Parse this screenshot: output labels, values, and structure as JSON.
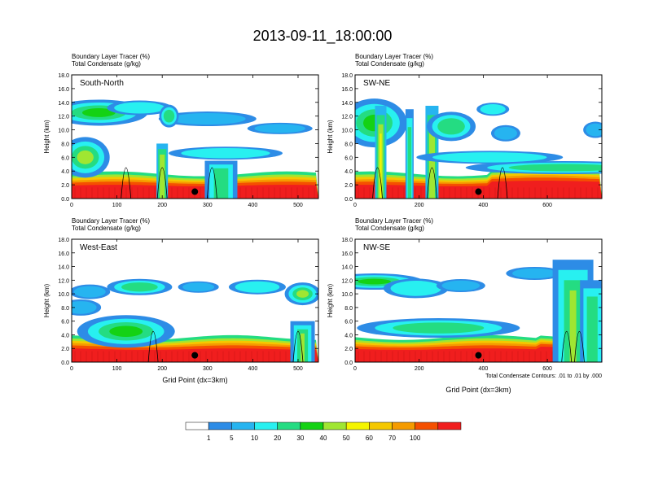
{
  "title": "2013-09-11_18:00:00",
  "panel_header": {
    "line1_name": "Boundary Layer Tracer",
    "line1_unit": "(%)",
    "line2_name": "Total Condensate",
    "line2_unit": "(g/kg)"
  },
  "ylabel": "Height (km)",
  "xlabel": "Grid Point (dx=3km)",
  "contour_note": "Total Condensate Contours: .01 to .01 by .000",
  "colorbar": {
    "labels": [
      "1",
      "5",
      "10",
      "20",
      "30",
      "40",
      "50",
      "60",
      "70",
      "100"
    ],
    "colors": [
      "#ffffff",
      "#2d8ce6",
      "#26b4f0",
      "#28f0f0",
      "#24dc82",
      "#14d214",
      "#a0e632",
      "#f5f500",
      "#f5c800",
      "#f59b00",
      "#f55000",
      "#f01e1e"
    ]
  },
  "chart_data": [
    {
      "type": "heatmap",
      "panel_label": "South-North",
      "ylim": [
        0,
        18
      ],
      "xlim": [
        0,
        545
      ],
      "yticks": [
        "0.0",
        "2.0",
        "4.0",
        "6.0",
        "8.0",
        "10.0",
        "12.0",
        "14.0",
        "16.0",
        "18.0"
      ],
      "xticks": [
        "0",
        "100",
        "200",
        "300",
        "400",
        "500"
      ],
      "xtick_values": [
        0,
        100,
        200,
        300,
        400,
        500
      ],
      "marker": {
        "x": 272,
        "y": 1.0
      }
    },
    {
      "type": "heatmap",
      "panel_label": "SW-NE",
      "ylim": [
        0,
        18
      ],
      "xlim": [
        0,
        770
      ],
      "yticks": [
        "0.0",
        "2.0",
        "4.0",
        "6.0",
        "8.0",
        "10.0",
        "12.0",
        "14.0",
        "16.0",
        "18.0"
      ],
      "xticks": [
        "0",
        "200",
        "400",
        "600"
      ],
      "xtick_values": [
        0,
        200,
        400,
        600
      ],
      "marker": {
        "x": 385,
        "y": 1.0
      }
    },
    {
      "type": "heatmap",
      "panel_label": "West-East",
      "ylim": [
        0,
        18
      ],
      "xlim": [
        0,
        545
      ],
      "yticks": [
        "0.0",
        "2.0",
        "4.0",
        "6.0",
        "8.0",
        "10.0",
        "12.0",
        "14.0",
        "16.0",
        "18.0"
      ],
      "xticks": [
        "0",
        "100",
        "200",
        "300",
        "400",
        "500"
      ],
      "xtick_values": [
        0,
        100,
        200,
        300,
        400,
        500
      ],
      "marker": {
        "x": 272,
        "y": 1.0
      }
    },
    {
      "type": "heatmap",
      "panel_label": "NW-SE",
      "ylim": [
        0,
        18
      ],
      "xlim": [
        0,
        770
      ],
      "yticks": [
        "0.0",
        "2.0",
        "4.0",
        "6.0",
        "8.0",
        "10.0",
        "12.0",
        "14.0",
        "16.0",
        "18.0"
      ],
      "xticks": [
        "0",
        "200",
        "400",
        "600"
      ],
      "xtick_values": [
        0,
        200,
        400,
        600
      ],
      "marker": {
        "x": 385,
        "y": 1.0
      }
    }
  ]
}
